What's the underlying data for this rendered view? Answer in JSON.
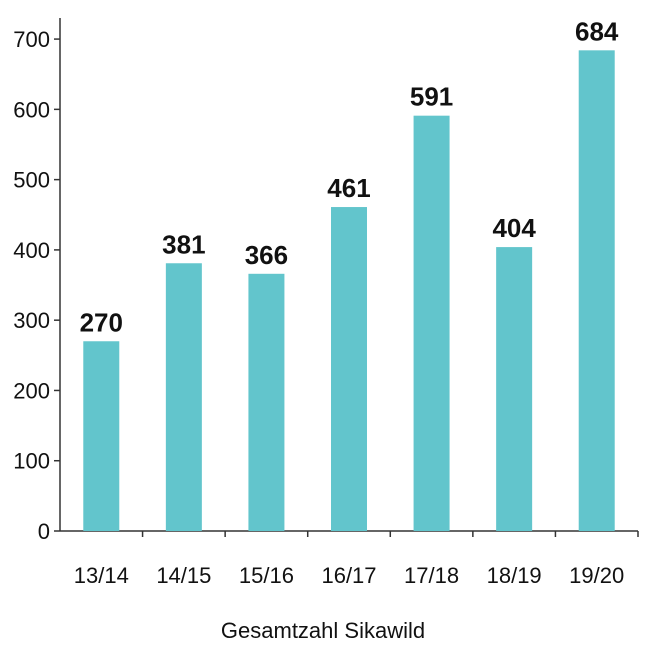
{
  "chart_data": {
    "type": "bar",
    "categories": [
      "13/14",
      "14/15",
      "15/16",
      "16/17",
      "17/18",
      "18/19",
      "19/20"
    ],
    "values": [
      270,
      381,
      366,
      461,
      591,
      404,
      684
    ],
    "title": "",
    "xlabel": "Gesamtzahl Sikawild",
    "ylabel": "",
    "ylim": [
      0,
      730
    ],
    "yticks": [
      0,
      100,
      200,
      300,
      400,
      500,
      600,
      700
    ],
    "grid": false,
    "legend": "none",
    "bar_color": "#62c5cc",
    "axis_color": "#333333"
  }
}
